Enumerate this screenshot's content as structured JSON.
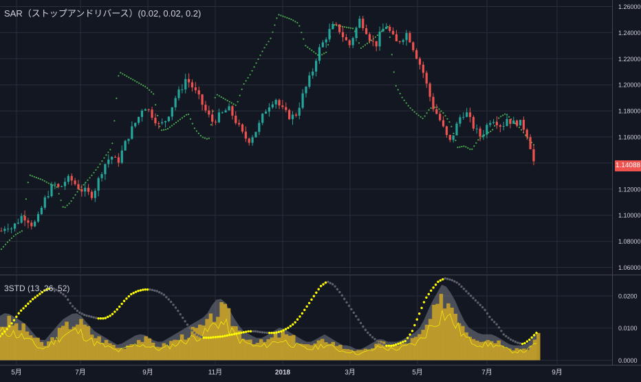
{
  "legend": {
    "main": "SAR（ストップアンドリバース）(0.02, 0.02, 0.2)",
    "sub": "3STD (13, 26, 52)"
  },
  "last_price_label": "1.14088",
  "colors": {
    "background": "#131722",
    "grid": "#2a2e39",
    "axis_text": "#d1d4dc",
    "up": "#26a69a",
    "down": "#ef5350",
    "sar": "#4caf50",
    "std_line": "#ffff00",
    "std_slow": "#5d606b",
    "std_fill_gold": "#c9a227",
    "std_fill_gray": "#787b86"
  },
  "chart_data": [
    {
      "type": "candlestick",
      "title": "",
      "indicator": "SAR (0.02, 0.02, 0.2)",
      "ylim": [
        1.055,
        1.265
      ],
      "y_ticks": [
        "1.26000",
        "1.24000",
        "1.22000",
        "1.20000",
        "1.18000",
        "1.16000",
        "1.14000",
        "1.12000",
        "1.10000",
        "1.08000",
        "1.06000"
      ],
      "y_tick_values": [
        1.26,
        1.24,
        1.22,
        1.2,
        1.18,
        1.16,
        1.14,
        1.12,
        1.1,
        1.08,
        1.06
      ],
      "x_ticks": [
        "5月",
        "7月",
        "9月",
        "11月",
        "2018",
        "3月",
        "5月",
        "7月",
        "9月"
      ],
      "closes": [
        1.088,
        1.093,
        1.09,
        1.095,
        1.1,
        1.097,
        1.092,
        1.098,
        1.11,
        1.118,
        1.124,
        1.12,
        1.126,
        1.128,
        1.124,
        1.12,
        1.118,
        1.115,
        1.122,
        1.134,
        1.142,
        1.145,
        1.14,
        1.15,
        1.16,
        1.168,
        1.175,
        1.185,
        1.18,
        1.175,
        1.168,
        1.172,
        1.18,
        1.19,
        1.196,
        1.205,
        1.2,
        1.193,
        1.186,
        1.178,
        1.172,
        1.175,
        1.178,
        1.182,
        1.176,
        1.168,
        1.16,
        1.158,
        1.163,
        1.17,
        1.18,
        1.186,
        1.19,
        1.182,
        1.178,
        1.175,
        1.178,
        1.19,
        1.2,
        1.21,
        1.225,
        1.232,
        1.24,
        1.245,
        1.243,
        1.236,
        1.23,
        1.24,
        1.25,
        1.244,
        1.235,
        1.23,
        1.24,
        1.246,
        1.238,
        1.232,
        1.236,
        1.24,
        1.23,
        1.22,
        1.21,
        1.195,
        1.182,
        1.175,
        1.165,
        1.155,
        1.165,
        1.175,
        1.18,
        1.172,
        1.165,
        1.16,
        1.168,
        1.175,
        1.172,
        1.168,
        1.175,
        1.17,
        1.172,
        1.168,
        1.16,
        1.141
      ],
      "sar_points": [
        1.074,
        1.08,
        1.085,
        1.088,
        1.131,
        1.129,
        1.127,
        1.124,
        1.122,
        1.105,
        1.11,
        1.118,
        1.124,
        1.13,
        1.137,
        1.145,
        1.152,
        1.21,
        1.207,
        1.204,
        1.201,
        1.198,
        1.193,
        1.165,
        1.166,
        1.17,
        1.174,
        1.178,
        1.166,
        1.16,
        1.158,
        1.193,
        1.19,
        1.187,
        1.184,
        1.2,
        1.208,
        1.218,
        1.228,
        1.236,
        1.254,
        1.252,
        1.25,
        1.247,
        1.23,
        1.226,
        1.222,
        1.225,
        1.246,
        1.245,
        1.244,
        1.243,
        1.228,
        1.232,
        1.236,
        1.241,
        1.245,
        1.2,
        1.19,
        1.183,
        1.178,
        1.174,
        1.182,
        1.183,
        1.178,
        1.17,
        1.152,
        1.153,
        1.15,
        1.158,
        1.162,
        1.165,
        1.175,
        1.178,
        1.172,
        1.167,
        1.16,
        1.154
      ]
    },
    {
      "type": "area",
      "indicator": "3STD (13, 26, 52)",
      "ylim": [
        -0.001,
        0.026
      ],
      "y_ticks": [
        "0.0200",
        "0.0100",
        "0.0000"
      ],
      "y_tick_values": [
        0.02,
        0.01,
        0.0
      ],
      "series": [
        {
          "values": [
            0.012,
            0.013,
            0.012,
            0.011,
            0.01,
            0.008,
            0.006,
            0.005,
            0.007,
            0.009,
            0.011,
            0.012,
            0.013,
            0.012,
            0.01,
            0.008,
            0.007,
            0.006,
            0.005,
            0.004,
            0.005,
            0.006,
            0.007,
            0.007,
            0.006,
            0.005,
            0.005,
            0.006,
            0.007,
            0.008,
            0.009,
            0.01,
            0.011,
            0.012,
            0.015,
            0.017,
            0.016,
            0.013,
            0.01,
            0.008,
            0.007,
            0.006,
            0.006,
            0.007,
            0.008,
            0.009,
            0.008,
            0.007,
            0.006,
            0.005,
            0.005,
            0.006,
            0.007,
            0.006,
            0.005,
            0.004,
            0.004,
            0.003,
            0.003,
            0.004,
            0.005,
            0.006,
            0.005,
            0.005,
            0.005,
            0.006,
            0.007,
            0.008,
            0.011,
            0.015,
            0.018,
            0.021,
            0.019,
            0.016,
            0.012,
            0.009,
            0.008,
            0.007,
            0.007,
            0.007,
            0.006,
            0.005,
            0.004,
            0.004,
            0.004,
            0.005,
            0.008
          ]
        },
        {
          "values": [
            0.0075,
            0.0095,
            0.012,
            0.015,
            0.017,
            0.019,
            0.0205,
            0.022,
            0.0225,
            0.0215,
            0.02,
            0.017,
            0.015,
            0.014,
            0.0135,
            0.013,
            0.013,
            0.014,
            0.016,
            0.0185,
            0.0205,
            0.0215,
            0.022,
            0.022,
            0.0215,
            0.0205,
            0.0185,
            0.016,
            0.013,
            0.01,
            0.008,
            0.007,
            0.007,
            0.0072,
            0.0074,
            0.0078,
            0.0082,
            0.0086,
            0.009,
            0.009,
            0.0087,
            0.0085,
            0.0085,
            0.009,
            0.01,
            0.0115,
            0.014,
            0.017,
            0.02,
            0.023,
            0.0245,
            0.0235,
            0.021,
            0.018,
            0.015,
            0.012,
            0.009,
            0.007,
            0.0055,
            0.0045,
            0.0045,
            0.0052,
            0.006,
            0.009,
            0.014,
            0.019,
            0.022,
            0.0245,
            0.0255,
            0.025,
            0.024,
            0.022,
            0.02,
            0.018,
            0.016,
            0.013,
            0.011,
            0.008,
            0.0065,
            0.0055,
            0.005,
            0.0065,
            0.0085
          ]
        }
      ]
    }
  ]
}
